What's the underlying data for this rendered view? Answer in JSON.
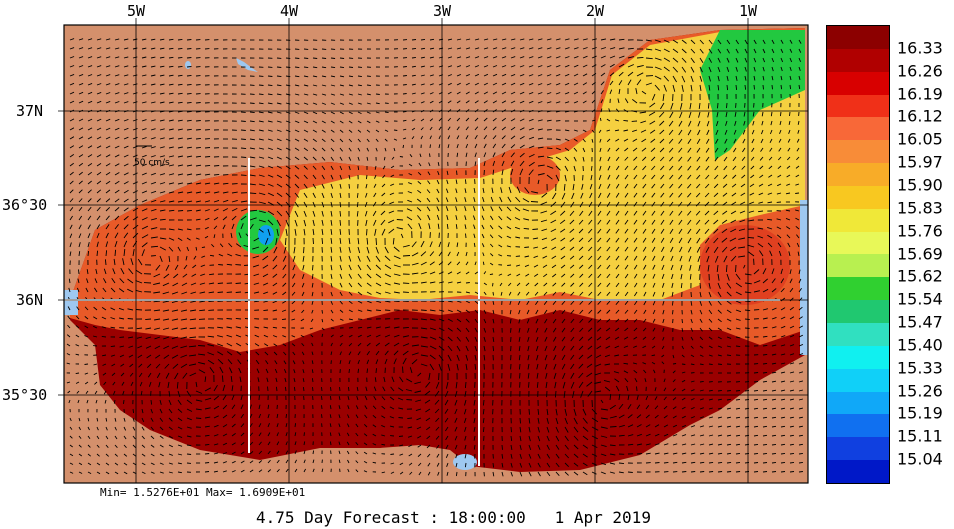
{
  "map": {
    "longitude_labels": [
      "5W",
      "4W",
      "3W",
      "2W",
      "1W"
    ],
    "latitude_labels": [
      "37N",
      "36°30",
      "36N",
      "35°30"
    ],
    "scale_label": "50 cm/s",
    "min_max_text": "Min= 1.5276E+01  Max= 1.6909E+01",
    "forecast_text": "4.75 Day Forecast : 18:00:00   1 Apr 2019",
    "land_color": "#D4906C",
    "sea_colors": {
      "warm": "#9A0000",
      "mid": "#E85A28",
      "cool": "#F5D040",
      "green": "#22C840",
      "blue": "#10A0F0"
    }
  },
  "legend": {
    "values": [
      "16.33",
      "16.26",
      "16.19",
      "16.12",
      "16.05",
      "15.97",
      "15.90",
      "15.83",
      "15.76",
      "15.69",
      "15.62",
      "15.54",
      "15.47",
      "15.40",
      "15.33",
      "15.26",
      "15.19",
      "15.11",
      "15.04"
    ],
    "colors": [
      "#8C0000",
      "#B00000",
      "#D80000",
      "#F03018",
      "#F86838",
      "#F88C38",
      "#F8AC28",
      "#F8C820",
      "#F0E838",
      "#E8F858",
      "#B8F050",
      "#30D030",
      "#20C870",
      "#30E0C0",
      "#10F0F0",
      "#10D0F8",
      "#10A8F8",
      "#1070F0",
      "#1040E0",
      "#0018C8"
    ]
  }
}
